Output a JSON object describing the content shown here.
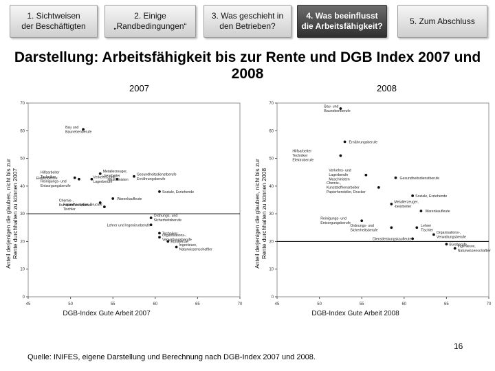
{
  "nav": {
    "tabs": [
      {
        "label": "1. Sichtweisen\nder Beschäftigten",
        "active": false
      },
      {
        "label": "2. Einige\n„Randbedingungen“",
        "active": false
      },
      {
        "label": "3. Was geschieht in\nden Betrieben?",
        "active": false
      },
      {
        "label": "4. Was beeinflusst\ndie Arbeitsfähigkeit?",
        "active": true
      },
      {
        "label": "5. Zum Abschluss",
        "active": false
      }
    ]
  },
  "slide": {
    "title": "Darstellung: Arbeitsfähigkeit bis zur Rente und DGB Index 2007 und 2008",
    "year_left": "2007",
    "year_right": "2008",
    "page_number": "16",
    "source": "Quelle: INIFES, eigene Darstellung und Berechnung nach DGB-Index 2007 und 2008."
  },
  "chart_data": [
    {
      "type": "scatter",
      "title": "2007",
      "xlabel": "DGB-Index Gute Arbeit 2007",
      "ylabel": "Anteil derjenigen die glauben, nicht bis zur Rente durchhalten zu können 2007",
      "xlim": [
        45,
        70
      ],
      "ylim": [
        0,
        70
      ],
      "xticks": [
        45,
        50,
        55,
        60,
        65,
        70
      ],
      "yticks": [
        0,
        10,
        20,
        30,
        40,
        50,
        60,
        70
      ],
      "reference_line_y": 30,
      "grid": false,
      "points": [
        {
          "x": 51.5,
          "y": 60.5,
          "label": "Bau und\nBaunebenberufe"
        },
        {
          "x": 52.5,
          "y": 42.5,
          "label": "Verkehrs- und\nLagerberufe"
        },
        {
          "x": 50.5,
          "y": 43.0,
          "label": "Elektroberufe"
        },
        {
          "x": 51.0,
          "y": 42.5,
          "label": "Hilfsarbeiter\nTechniker\nReinigungs- und\nEntsorgungsberufe"
        },
        {
          "x": 53.5,
          "y": 44.5,
          "label": "Metallerzeuger,\n-bearbeiter"
        },
        {
          "x": 55.5,
          "y": 42.5,
          "label": "Maschinisten"
        },
        {
          "x": 57.5,
          "y": 43.5,
          "label": "Gesundheitsdienstberufe\nErnährungsberufe"
        },
        {
          "x": 60.5,
          "y": 38.0,
          "label": "Soziale, Erziehende"
        },
        {
          "x": 53.5,
          "y": 34.0,
          "label": "Chemie-,\nKunststoffverarbeiter"
        },
        {
          "x": 55.0,
          "y": 35.5,
          "label": "Warenkaufleute"
        },
        {
          "x": 54.0,
          "y": 32.5,
          "label": "Papierhersteller, Drucker\nTischler"
        },
        {
          "x": 59.5,
          "y": 28.5,
          "label": "Ordnungs- und\nSicherheitsberufe"
        },
        {
          "x": 59.5,
          "y": 26.0,
          "label": "Lehrer und Ingenieurberufe"
        },
        {
          "x": 60.5,
          "y": 23.0,
          "label": "Techniker"
        },
        {
          "x": 60.5,
          "y": 21.5,
          "label": "Organisations-,\nVerwaltungsberufe"
        },
        {
          "x": 61.5,
          "y": 20.0,
          "label": "Büroberufe"
        },
        {
          "x": 62.5,
          "y": 18.0,
          "label": "Ingenieure,\nNaturwissenschaftler"
        }
      ]
    },
    {
      "type": "scatter",
      "title": "2008",
      "xlabel": "DGB-Index Gute Arbeit 2008",
      "ylabel": "Anteil derjenigen die glauben, nicht bis zur Rente durchhalten zu können 2008",
      "xlim": [
        45,
        70
      ],
      "ylim": [
        0,
        70
      ],
      "xticks": [
        45,
        50,
        55,
        60,
        65,
        70
      ],
      "yticks": [
        0,
        10,
        20,
        30,
        40,
        50,
        60,
        70
      ],
      "reference_line_y": 20,
      "grid": false,
      "points": [
        {
          "x": 52.5,
          "y": 68.0,
          "label": "Bau- und\nBaunebenberufe"
        },
        {
          "x": 53.0,
          "y": 56.0,
          "label": "Ernährungsberufe"
        },
        {
          "x": 52.5,
          "y": 51.0,
          "label": "Hilfsarbeiter\nTechniker\nElektroberufe"
        },
        {
          "x": 55.5,
          "y": 44.0,
          "label": "Verkehrs- und\nLagerberufe\nMaschinisten"
        },
        {
          "x": 59.0,
          "y": 43.0,
          "label": "Gesundheitsdienstberufe"
        },
        {
          "x": 57.0,
          "y": 39.5,
          "label": "Chemie-,\nKunststoffverarbeiter\nPapierhersteller, Drucker"
        },
        {
          "x": 61.0,
          "y": 36.5,
          "label": "Soziale, Erziehende"
        },
        {
          "x": 58.5,
          "y": 33.5,
          "label": "Metallerzeuger,\n-bearbeiter"
        },
        {
          "x": 62.0,
          "y": 31.0,
          "label": "Warenkaufleute"
        },
        {
          "x": 55.0,
          "y": 27.5,
          "label": "Reinigungs- und\nEntsorgungsberufe"
        },
        {
          "x": 58.5,
          "y": 25.0,
          "label": "Ordnungs- und\nSicherheitsberufe"
        },
        {
          "x": 61.5,
          "y": 25.0,
          "label": "Lehrer\nTischler"
        },
        {
          "x": 63.5,
          "y": 22.5,
          "label": "Organisations-,\nVerwaltungsberufe"
        },
        {
          "x": 61.0,
          "y": 21.0,
          "label": "Dienstleistungskaufleute"
        },
        {
          "x": 65.0,
          "y": 19.0,
          "label": "Büroberufe"
        },
        {
          "x": 66.0,
          "y": 17.5,
          "label": "Ingenieure,\nNaturwissenschaftler"
        }
      ]
    }
  ]
}
